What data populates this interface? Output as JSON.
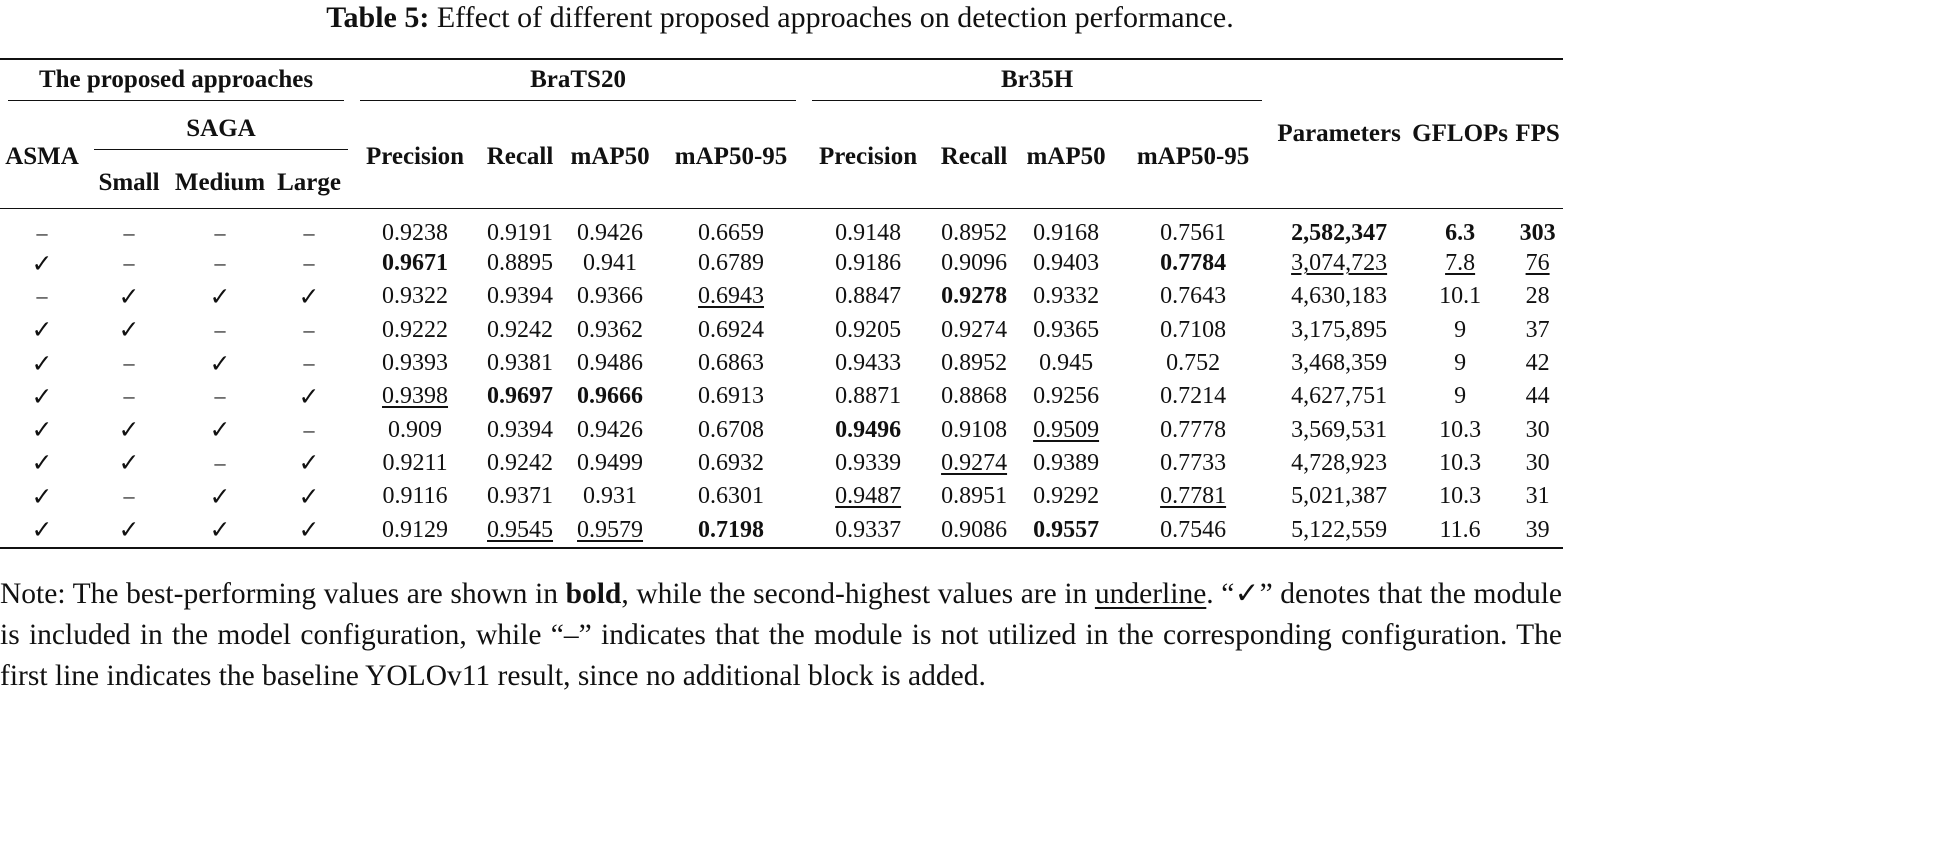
{
  "caption": {
    "label": "Table 5:",
    "text": "Effect of different proposed approaches on detection performance."
  },
  "header": {
    "group_approaches": "The proposed approaches",
    "group_brats": "BraTS20",
    "group_br35h": "Br35H",
    "asma": "ASMA",
    "saga": "SAGA",
    "small": "Small",
    "medium": "Medium",
    "large": "Large",
    "precision": "Precision",
    "recall": "Recall",
    "map50": "mAP50",
    "map5095": "mAP50-95",
    "parameters": "Parameters",
    "gflops": "GFLOPs",
    "fps": "FPS"
  },
  "symbols": {
    "check": "✓",
    "dash": "–"
  },
  "rows": [
    {
      "c": [
        "–",
        "–",
        "–",
        "–",
        "0.9238",
        "0.9191",
        "0.9426",
        "0.6659",
        "0.9148",
        "0.8952",
        "0.9168",
        "0.7561",
        "2,582,347",
        "6.3",
        "303"
      ],
      "s": [
        "",
        "",
        "",
        "",
        "",
        "",
        "",
        "",
        "",
        "",
        "",
        "",
        "b",
        "b",
        "b"
      ]
    },
    {
      "c": [
        "✓",
        "–",
        "–",
        "–",
        "0.9671",
        "0.8895",
        "0.941",
        "0.6789",
        "0.9186",
        "0.9096",
        "0.9403",
        "0.7784",
        "3,074,723",
        "7.8",
        "76"
      ],
      "s": [
        "",
        "",
        "",
        "",
        "b",
        "",
        "",
        "",
        "",
        "",
        "",
        "b",
        "u",
        "u",
        "u"
      ]
    },
    {
      "c": [
        "–",
        "✓",
        "✓",
        "✓",
        "0.9322",
        "0.9394",
        "0.9366",
        "0.6943",
        "0.8847",
        "0.9278",
        "0.9332",
        "0.7643",
        "4,630,183",
        "10.1",
        "28"
      ],
      "s": [
        "",
        "",
        "",
        "",
        "",
        "",
        "",
        "u",
        "",
        "b",
        "",
        "",
        "",
        "",
        ""
      ]
    },
    {
      "c": [
        "✓",
        "✓",
        "–",
        "–",
        "0.9222",
        "0.9242",
        "0.9362",
        "0.6924",
        "0.9205",
        "0.9274",
        "0.9365",
        "0.7108",
        "3,175,895",
        "9",
        "37"
      ],
      "s": [
        "",
        "",
        "",
        "",
        "",
        "",
        "",
        "",
        "",
        "",
        "",
        "",
        "",
        "",
        ""
      ]
    },
    {
      "c": [
        "✓",
        "–",
        "✓",
        "–",
        "0.9393",
        "0.9381",
        "0.9486",
        "0.6863",
        "0.9433",
        "0.8952",
        "0.945",
        "0.752",
        "3,468,359",
        "9",
        "42"
      ],
      "s": [
        "",
        "",
        "",
        "",
        "",
        "",
        "",
        "",
        "",
        "",
        "",
        "",
        "",
        "",
        ""
      ]
    },
    {
      "c": [
        "✓",
        "–",
        "–",
        "✓",
        "0.9398",
        "0.9697",
        "0.9666",
        "0.6913",
        "0.8871",
        "0.8868",
        "0.9256",
        "0.7214",
        "4,627,751",
        "9",
        "44"
      ],
      "s": [
        "",
        "",
        "",
        "",
        "u",
        "b",
        "b",
        "",
        "",
        "",
        "",
        "",
        "",
        "",
        ""
      ]
    },
    {
      "c": [
        "✓",
        "✓",
        "✓",
        "–",
        "0.909",
        "0.9394",
        "0.9426",
        "0.6708",
        "0.9496",
        "0.9108",
        "0.9509",
        "0.7778",
        "3,569,531",
        "10.3",
        "30"
      ],
      "s": [
        "",
        "",
        "",
        "",
        "",
        "",
        "",
        "",
        "b",
        "",
        "u",
        "",
        "",
        "",
        ""
      ]
    },
    {
      "c": [
        "✓",
        "✓",
        "–",
        "✓",
        "0.9211",
        "0.9242",
        "0.9499",
        "0.6932",
        "0.9339",
        "0.9274",
        "0.9389",
        "0.7733",
        "4,728,923",
        "10.3",
        "30"
      ],
      "s": [
        "",
        "",
        "",
        "",
        "",
        "",
        "",
        "",
        "",
        "u",
        "",
        "",
        "",
        "",
        ""
      ]
    },
    {
      "c": [
        "✓",
        "–",
        "✓",
        "✓",
        "0.9116",
        "0.9371",
        "0.931",
        "0.6301",
        "0.9487",
        "0.8951",
        "0.9292",
        "0.7781",
        "5,021,387",
        "10.3",
        "31"
      ],
      "s": [
        "",
        "",
        "",
        "",
        "",
        "",
        "",
        "",
        "u",
        "",
        "",
        "u",
        "",
        "",
        ""
      ]
    },
    {
      "c": [
        "✓",
        "✓",
        "✓",
        "✓",
        "0.9129",
        "0.9545",
        "0.9579",
        "0.7198",
        "0.9337",
        "0.9086",
        "0.9557",
        "0.7546",
        "5,122,559",
        "11.6",
        "39"
      ],
      "s": [
        "",
        "",
        "",
        "",
        "",
        "u",
        "u",
        "b",
        "",
        "",
        "b",
        "",
        "",
        "",
        ""
      ]
    }
  ],
  "note": {
    "t1": "Note: The best-performing values are shown in ",
    "bold_word": "bold",
    "t2": ", while the second-highest values are in ",
    "underline_word": "underline",
    "t3": ". “✓” denotes that the module is included in the model configuration, while “–” indicates that the module is not utilized in the corresponding configuration. The first line indicates the baseline YOLOv11 result, since no additional block is added."
  }
}
